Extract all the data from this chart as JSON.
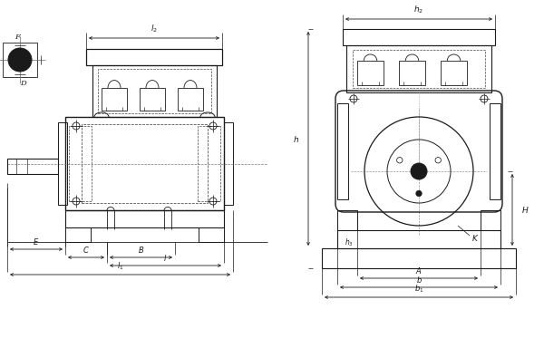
{
  "bg_color": "#ffffff",
  "line_color": "#1a1a1a",
  "dash_color": "#444444",
  "fig_width": 6.0,
  "fig_height": 3.84,
  "dpi": 100
}
